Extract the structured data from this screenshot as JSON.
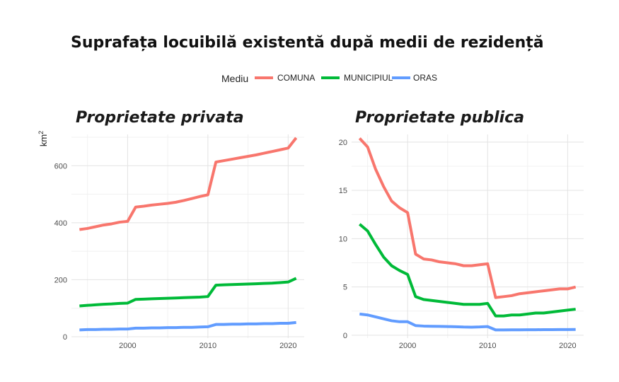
{
  "chart_data": {
    "type": "line",
    "title": "Suprafața locuibilă existentă după medii de rezidență",
    "legend": {
      "title": "Mediu",
      "position": "top",
      "entries": [
        {
          "label": "COMUNA",
          "color": "#F8766D"
        },
        {
          "label": "MUNICIPIUL",
          "color": "#00BA38"
        },
        {
          "label": "ORAS",
          "color": "#619CFF"
        }
      ]
    },
    "ylabel_base": "km",
    "ylabel_sup": "2",
    "grid": true,
    "panels": [
      {
        "title": "Proprietate privata",
        "xlim": [
          1993,
          2022
        ],
        "ylim": [
          -5,
          710
        ],
        "xticks": [
          2000,
          2010,
          2020
        ],
        "yticks": [
          0,
          200,
          400,
          600
        ],
        "show_ylabel": true,
        "series": [
          {
            "name": "COMUNA",
            "color": "#F8766D",
            "x": [
              1994,
              1995,
              1996,
              1997,
              1998,
              1999,
              2000,
              2001,
              2002,
              2003,
              2004,
              2005,
              2006,
              2007,
              2008,
              2009,
              2010,
              2011,
              2012,
              2013,
              2014,
              2015,
              2016,
              2017,
              2018,
              2019,
              2020,
              2021
            ],
            "y": [
              376,
              380,
              386,
              392,
              396,
              402,
              405,
              455,
              458,
              462,
              465,
              468,
              472,
              478,
              485,
              492,
              498,
              613,
              618,
              623,
              628,
              633,
              638,
              644,
              650,
              656,
              662,
              698
            ]
          },
          {
            "name": "MUNICIPIUL",
            "color": "#00BA38",
            "x": [
              1994,
              1995,
              1996,
              1997,
              1998,
              1999,
              2000,
              2001,
              2002,
              2003,
              2004,
              2005,
              2006,
              2007,
              2008,
              2009,
              2010,
              2011,
              2012,
              2013,
              2014,
              2015,
              2016,
              2017,
              2018,
              2019,
              2020,
              2021
            ],
            "y": [
              108,
              110,
              112,
              114,
              115,
              117,
              118,
              131,
              132,
              133,
              134,
              135,
              136,
              137,
              138,
              139,
              141,
              181,
              182,
              183,
              184,
              185,
              186,
              187,
              188,
              190,
              192,
              205
            ]
          },
          {
            "name": "ORAS",
            "color": "#619CFF",
            "x": [
              1994,
              1995,
              1996,
              1997,
              1998,
              1999,
              2000,
              2001,
              2002,
              2003,
              2004,
              2005,
              2006,
              2007,
              2008,
              2009,
              2010,
              2011,
              2012,
              2013,
              2014,
              2015,
              2016,
              2017,
              2018,
              2019,
              2020,
              2021
            ],
            "y": [
              24,
              25,
              25,
              26,
              26,
              27,
              27,
              30,
              30,
              31,
              31,
              32,
              32,
              33,
              33,
              34,
              35,
              43,
              43,
              44,
              44,
              45,
              45,
              46,
              46,
              47,
              47,
              50
            ]
          }
        ]
      },
      {
        "title": "Proprietate publica",
        "xlim": [
          1993,
          2022
        ],
        "ylim": [
          -0.3,
          20.8
        ],
        "xticks": [
          2000,
          2010,
          2020
        ],
        "yticks": [
          0,
          5,
          10,
          15,
          20
        ],
        "show_ylabel": false,
        "series": [
          {
            "name": "COMUNA",
            "color": "#F8766D",
            "x": [
              1994,
              1995,
              1996,
              1997,
              1998,
              1999,
              2000,
              2001,
              2002,
              2003,
              2004,
              2005,
              2006,
              2007,
              2008,
              2009,
              2010,
              2011,
              2012,
              2013,
              2014,
              2015,
              2016,
              2017,
              2018,
              2019,
              2020,
              2021
            ],
            "y": [
              20.4,
              19.5,
              17.2,
              15.4,
              13.9,
              13.2,
              12.7,
              8.4,
              7.9,
              7.8,
              7.6,
              7.5,
              7.4,
              7.2,
              7.2,
              7.3,
              7.4,
              3.9,
              4.0,
              4.1,
              4.3,
              4.4,
              4.5,
              4.6,
              4.7,
              4.8,
              4.8,
              5.0
            ]
          },
          {
            "name": "MUNICIPIUL",
            "color": "#00BA38",
            "x": [
              1994,
              1995,
              1996,
              1997,
              1998,
              1999,
              2000,
              2001,
              2002,
              2003,
              2004,
              2005,
              2006,
              2007,
              2008,
              2009,
              2010,
              2011,
              2012,
              2013,
              2014,
              2015,
              2016,
              2017,
              2018,
              2019,
              2020,
              2021
            ],
            "y": [
              11.5,
              10.8,
              9.4,
              8.1,
              7.2,
              6.7,
              6.3,
              4.0,
              3.7,
              3.6,
              3.5,
              3.4,
              3.3,
              3.2,
              3.2,
              3.2,
              3.3,
              2.0,
              2.0,
              2.1,
              2.1,
              2.2,
              2.3,
              2.3,
              2.4,
              2.5,
              2.6,
              2.7
            ]
          },
          {
            "name": "ORAS",
            "color": "#619CFF",
            "x": [
              1994,
              1995,
              1996,
              1997,
              1998,
              1999,
              2000,
              2001,
              2002,
              2003,
              2004,
              2005,
              2006,
              2007,
              2008,
              2009,
              2010,
              2011,
              2012,
              2013,
              2014,
              2015,
              2016,
              2017,
              2018,
              2019,
              2020,
              2021
            ],
            "y": [
              2.2,
              2.1,
              1.9,
              1.7,
              1.5,
              1.4,
              1.4,
              1.0,
              0.95,
              0.93,
              0.92,
              0.9,
              0.88,
              0.85,
              0.84,
              0.86,
              0.9,
              0.55,
              0.55,
              0.56,
              0.56,
              0.57,
              0.57,
              0.58,
              0.58,
              0.59,
              0.59,
              0.6
            ]
          }
        ]
      }
    ]
  }
}
